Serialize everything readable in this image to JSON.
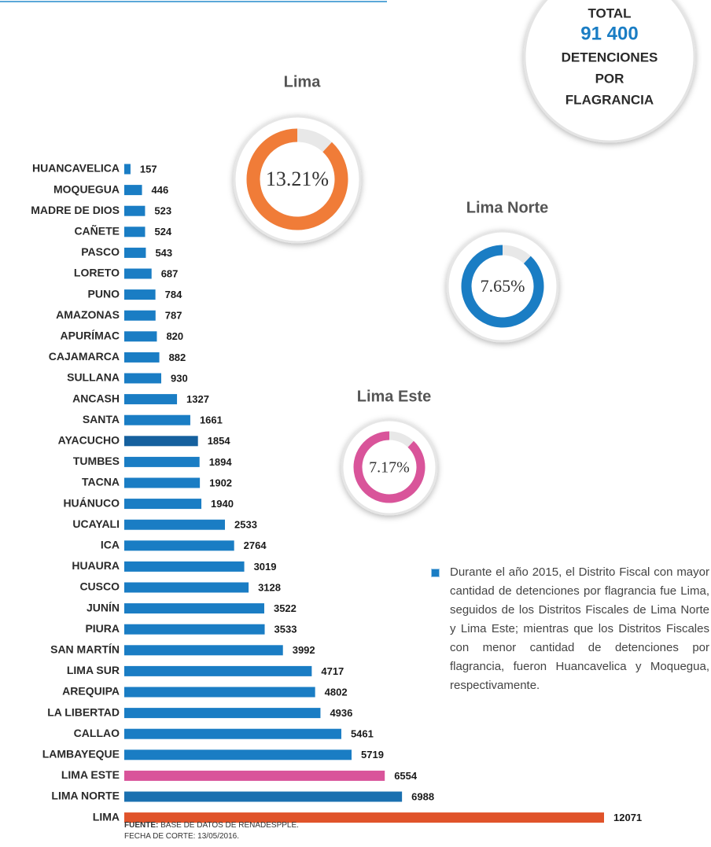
{
  "chart_data": {
    "type": "bar",
    "orientation": "horizontal",
    "categories": [
      "HUANCAVELICA",
      "MOQUEGUA",
      "MADRE DE DIOS",
      "CAÑETE",
      "PASCO",
      "LORETO",
      "PUNO",
      "AMAZONAS",
      "APURÍMAC",
      "CAJAMARCA",
      "SULLANA",
      "ANCASH",
      "SANTA",
      "AYACUCHO",
      "TUMBES",
      "TACNA",
      "HUÁNUCO",
      "UCAYALI",
      "ICA",
      "HUAURA",
      "CUSCO",
      "JUNÍN",
      "PIURA",
      "SAN MARTÍN",
      "LIMA SUR",
      "AREQUIPA",
      "LA LIBERTAD",
      "CALLAO",
      "LAMBAYEQUE",
      "LIMA ESTE",
      "LIMA NORTE",
      "LIMA"
    ],
    "values": [
      157,
      446,
      523,
      524,
      543,
      687,
      784,
      787,
      820,
      882,
      930,
      1327,
      1661,
      1854,
      1894,
      1902,
      1940,
      2533,
      2764,
      3019,
      3128,
      3522,
      3533,
      3992,
      4717,
      4802,
      4936,
      5461,
      5719,
      6554,
      6988,
      12071
    ],
    "colors": [
      "#1a7dc4",
      "#1a7dc4",
      "#1a7dc4",
      "#1a7dc4",
      "#1a7dc4",
      "#1a7dc4",
      "#1a7dc4",
      "#1a7dc4",
      "#1a7dc4",
      "#1a7dc4",
      "#1a7dc4",
      "#1a7dc4",
      "#1a7dc4",
      "#15609e",
      "#1a7dc4",
      "#1a7dc4",
      "#1a7dc4",
      "#1a7dc4",
      "#1a7dc4",
      "#1a7dc4",
      "#1a7dc4",
      "#1a7dc4",
      "#1a7dc4",
      "#1a7dc4",
      "#1a7dc4",
      "#1a7dc4",
      "#1a7dc4",
      "#1a7dc4",
      "#1a7dc4",
      "#d9549a",
      "#1a70b0",
      "#e0532a"
    ]
  },
  "donuts": [
    {
      "name": "Lima",
      "value": 13.21,
      "value_label": "13.21%",
      "color": "#f07c38"
    },
    {
      "name": "Lima Norte",
      "value": 7.65,
      "value_label": "7.65%",
      "color": "#1a7dc4"
    },
    {
      "name": "Lima Este",
      "value": 7.17,
      "value_label": "7.17%",
      "color": "#d9549a"
    }
  ],
  "total": {
    "lines": [
      "TOTAL",
      "91 400",
      "DETENCIONES",
      "POR",
      "FLAGRANCIA"
    ]
  },
  "note": "Durante el año 2015, el Distrito Fiscal con mayor cantidad de detenciones por flagrancia fue Lima, seguidos de los Distritos Fiscales de Lima Norte y Lima Este; mientras que los Distritos Fiscales con menor cantidad de detenciones por flagrancia, fueron Huancavelica y Moquegua, respectivamente.",
  "source": {
    "label": "FUENTE:",
    "text": "BASE DE DATOS DE RENADESPPLE.",
    "date": "FECHA DE CORTE: 13/05/2016."
  }
}
